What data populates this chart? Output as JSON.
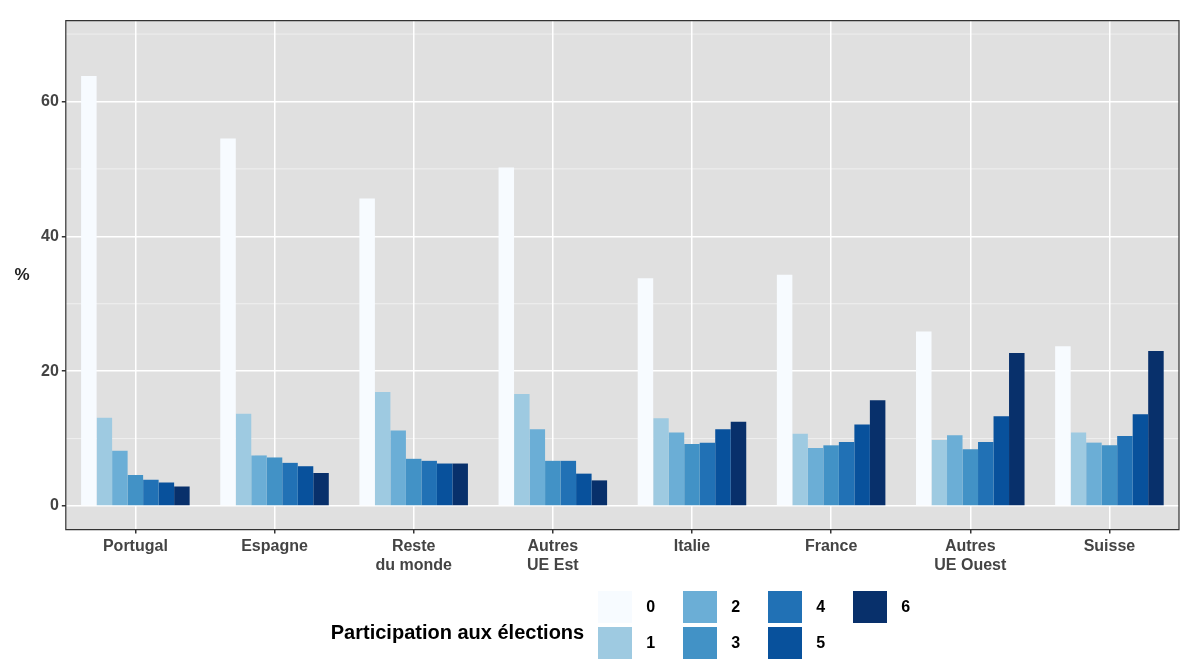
{
  "chart_data": {
    "type": "bar",
    "ylabel": "%",
    "legend_title": "Participation aux élections",
    "legend": "bottom",
    "grid": true,
    "categories": [
      "Portugal",
      "Espagne",
      "Reste du monde",
      "Autres UE Est",
      "Italie",
      "France",
      "Autres UE Ouest",
      "Suisse"
    ],
    "ylim": [
      -3.5,
      72
    ],
    "yticks": [
      0,
      20,
      40,
      60
    ],
    "series": [
      {
        "name": "0",
        "color": "#f7fbff",
        "values": [
          63.8,
          54.5,
          45.6,
          50.2,
          33.8,
          34.3,
          25.9,
          23.7
        ]
      },
      {
        "name": "1",
        "color": "#9ecae1",
        "values": [
          13.1,
          13.7,
          16.9,
          16.6,
          13.0,
          10.7,
          9.8,
          10.9
        ]
      },
      {
        "name": "2",
        "color": "#6baed6",
        "values": [
          8.2,
          7.5,
          11.2,
          11.4,
          10.9,
          8.6,
          10.5,
          9.4
        ]
      },
      {
        "name": "3",
        "color": "#4292c6",
        "values": [
          4.6,
          7.2,
          7.0,
          6.7,
          9.2,
          9.0,
          8.4,
          9.0
        ]
      },
      {
        "name": "4",
        "color": "#2171b5",
        "values": [
          3.9,
          6.4,
          6.7,
          6.7,
          9.4,
          9.5,
          9.5,
          10.4
        ]
      },
      {
        "name": "5",
        "color": "#08519c",
        "values": [
          3.5,
          5.9,
          6.3,
          4.8,
          11.4,
          12.1,
          13.3,
          13.6
        ]
      },
      {
        "name": "6",
        "color": "#08306b",
        "values": [
          2.9,
          4.9,
          6.3,
          3.8,
          12.5,
          15.7,
          22.7,
          23.0
        ]
      }
    ]
  }
}
